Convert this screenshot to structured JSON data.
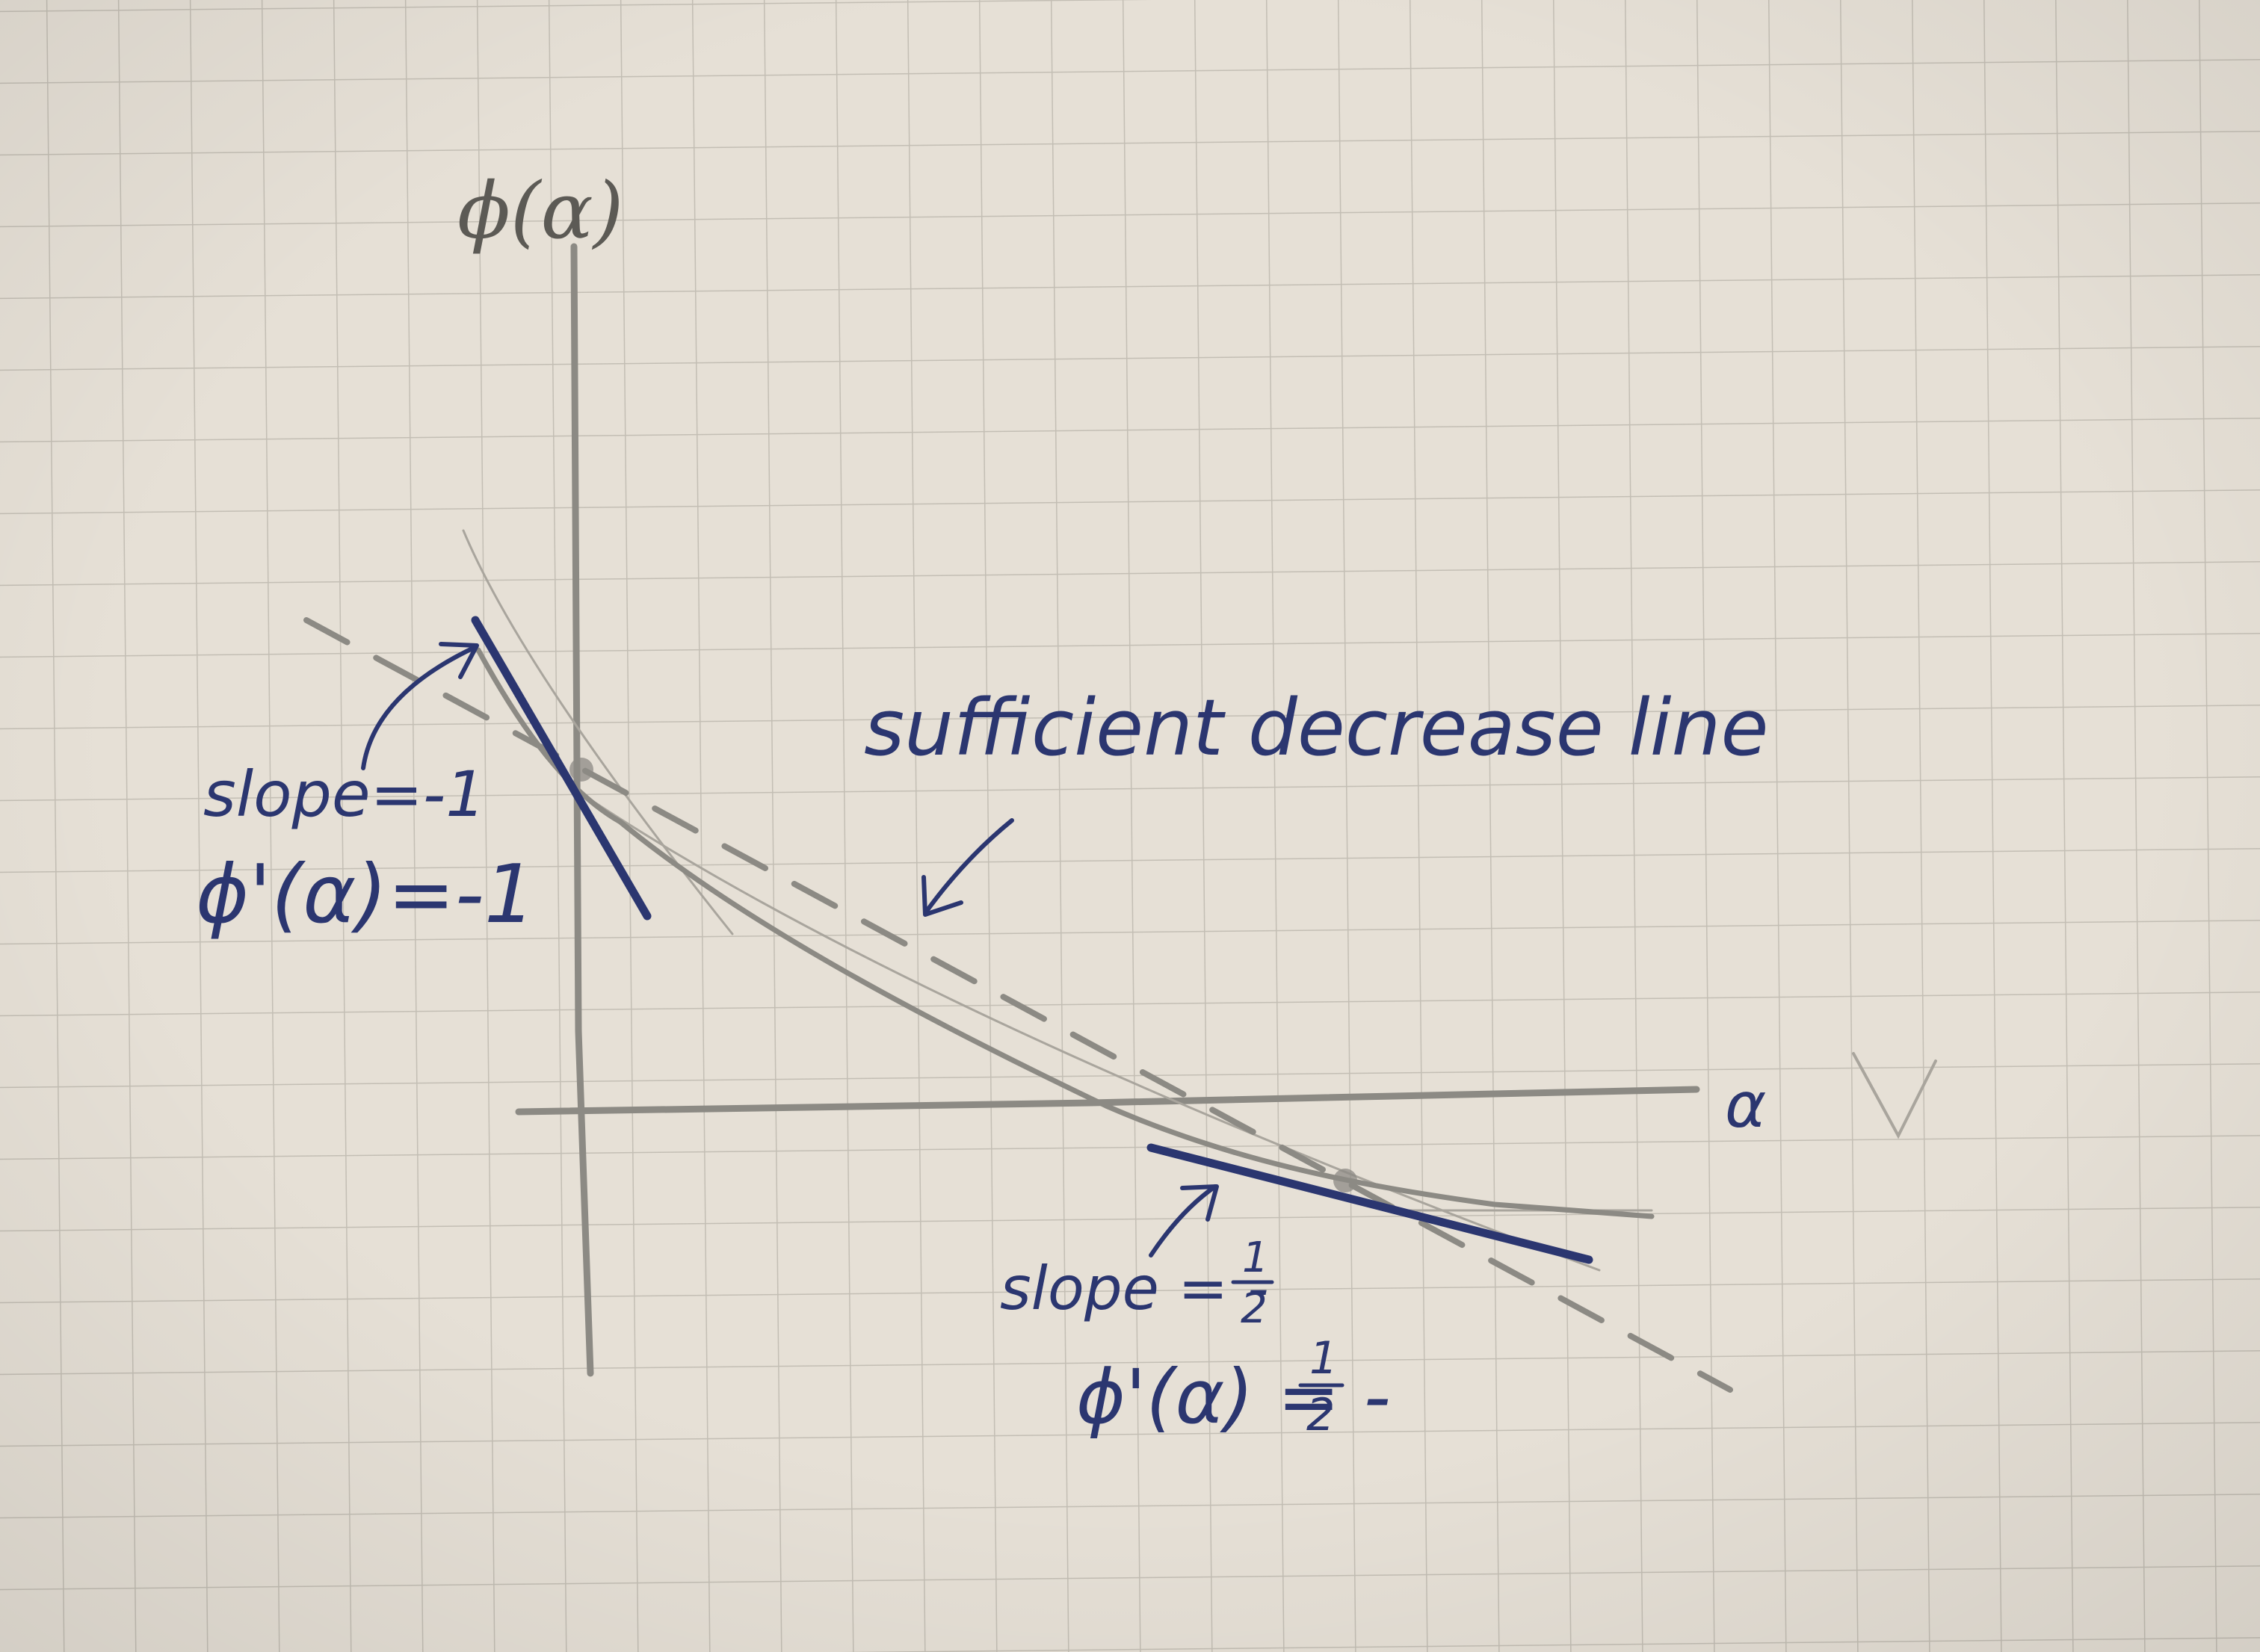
{
  "colors": {
    "paper": "#e6e0d6",
    "grid": "#c3beb4",
    "pencil": "#8c8a84",
    "ink": "#2b3670"
  },
  "axes": {
    "y_label": "ϕ(α)",
    "x_label": "α"
  },
  "curve": {
    "description_shown": "convex decreasing function drawn in pencil"
  },
  "annotations": {
    "sufficient_decrease": "sufficient decrease line",
    "left": {
      "slope": "slope=-1",
      "derivative": "ϕ'(α)=-1"
    },
    "right": {
      "slope_prefix": "slope = -",
      "slope_fraction_num": "1",
      "slope_fraction_den": "2",
      "derivative_prefix": "ϕ'(α) = -",
      "derivative_fraction_num": "1",
      "derivative_fraction_den": "2"
    }
  },
  "icons": {
    "arrow_left": "curved-arrow-icon",
    "arrow_middle": "curved-arrow-icon",
    "arrow_right": "curved-arrow-icon"
  }
}
